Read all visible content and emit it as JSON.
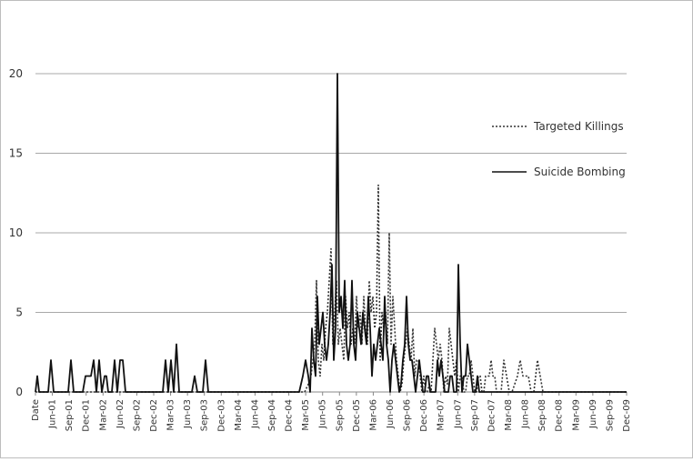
{
  "chart_data": {
    "type": "line",
    "title": "",
    "xlabel": "",
    "ylabel": "",
    "ylim": [
      0,
      20
    ],
    "yticks": [
      0,
      5,
      10,
      15,
      20
    ],
    "grid": "horizontal",
    "legend_position": "right",
    "x_ticks": [
      "Date",
      "Jun-01",
      "Sep-01",
      "Dec-01",
      "Mar-02",
      "Jun-02",
      "Sep-02",
      "Dec-02",
      "Mar-03",
      "Jun-03",
      "Sep-03",
      "Dec-03",
      "Mar-04",
      "Jun-04",
      "Sep-04",
      "Dec-04",
      "Mar-05",
      "Jun-05",
      "Sep-05",
      "Dec-05",
      "Mar-06",
      "Jun-06",
      "Sep-06",
      "Dec-06",
      "Mar-07",
      "Jun-07",
      "Sep-07",
      "Dec-07",
      "Mar-08",
      "Jun-08",
      "Sep-08",
      "Dec-08",
      "Mar-09",
      "Jun-09",
      "Sep-09",
      "Dec-09"
    ],
    "series": [
      {
        "name": "Targeted Killings",
        "style": "dotted",
        "color": "#333333",
        "points": [
          [
            0,
            0
          ],
          [
            20,
            0
          ],
          [
            40,
            0
          ],
          [
            60,
            0
          ],
          [
            80,
            0
          ],
          [
            100,
            0
          ],
          [
            120,
            0
          ],
          [
            140,
            0
          ],
          [
            160,
            0
          ],
          [
            180,
            0
          ],
          [
            200,
            0
          ],
          [
            220,
            0
          ],
          [
            240,
            0
          ],
          [
            260,
            0
          ],
          [
            280,
            0
          ],
          [
            296,
            0
          ],
          [
            300,
            0.5
          ],
          [
            303,
            1
          ],
          [
            305,
            2
          ],
          [
            307,
            3
          ],
          [
            309,
            7
          ],
          [
            311,
            2
          ],
          [
            313,
            1
          ],
          [
            315,
            3
          ],
          [
            317,
            2
          ],
          [
            319,
            4
          ],
          [
            321,
            5
          ],
          [
            323,
            7
          ],
          [
            325,
            9
          ],
          [
            327,
            3
          ],
          [
            329,
            5
          ],
          [
            331,
            7
          ],
          [
            333,
            3
          ],
          [
            335,
            4
          ],
          [
            337,
            3
          ],
          [
            339,
            2
          ],
          [
            341,
            6
          ],
          [
            343,
            4
          ],
          [
            345,
            5
          ],
          [
            347,
            3
          ],
          [
            349,
            4
          ],
          [
            351,
            3
          ],
          [
            353,
            6
          ],
          [
            355,
            4
          ],
          [
            357,
            5
          ],
          [
            359,
            3
          ],
          [
            361,
            6
          ],
          [
            363,
            4
          ],
          [
            365,
            3
          ],
          [
            367,
            7
          ],
          [
            369,
            5
          ],
          [
            371,
            6
          ],
          [
            373,
            4
          ],
          [
            375,
            5
          ],
          [
            377,
            13
          ],
          [
            379,
            2
          ],
          [
            381,
            5
          ],
          [
            383,
            4
          ],
          [
            385,
            5
          ],
          [
            387,
            3
          ],
          [
            389,
            10
          ],
          [
            391,
            3
          ],
          [
            393,
            6
          ],
          [
            395,
            4
          ],
          [
            397,
            2
          ],
          [
            399,
            1
          ],
          [
            401,
            0
          ],
          [
            403,
            0.5
          ],
          [
            405,
            2
          ],
          [
            407,
            3
          ],
          [
            409,
            4
          ],
          [
            411,
            3
          ],
          [
            413,
            2
          ],
          [
            415,
            4
          ],
          [
            417,
            1
          ],
          [
            419,
            2
          ],
          [
            421,
            2
          ],
          [
            423,
            1
          ],
          [
            425,
            0
          ],
          [
            427,
            1
          ],
          [
            429,
            0
          ],
          [
            431,
            0
          ],
          [
            433,
            0.5
          ],
          [
            435,
            0
          ],
          [
            437,
            2
          ],
          [
            439,
            4
          ],
          [
            441,
            3
          ],
          [
            443,
            2
          ],
          [
            445,
            3
          ],
          [
            447,
            2
          ],
          [
            449,
            0
          ],
          [
            451,
            1
          ],
          [
            453,
            0.5
          ],
          [
            455,
            4
          ],
          [
            457,
            3
          ],
          [
            459,
            2
          ],
          [
            461,
            1
          ],
          [
            463,
            2
          ],
          [
            465,
            0
          ],
          [
            467,
            1
          ],
          [
            469,
            1
          ],
          [
            471,
            0
          ],
          [
            473,
            0
          ],
          [
            475,
            1
          ],
          [
            477,
            1
          ],
          [
            479,
            2
          ],
          [
            481,
            1
          ],
          [
            483,
            0
          ],
          [
            485,
            0
          ],
          [
            487,
            1
          ],
          [
            489,
            1
          ],
          [
            491,
            0
          ],
          [
            493,
            0
          ],
          [
            495,
            1
          ],
          [
            497,
            1
          ],
          [
            499,
            1
          ],
          [
            501,
            2
          ],
          [
            503,
            1
          ],
          [
            505,
            1
          ],
          [
            507,
            0
          ],
          [
            509,
            0
          ],
          [
            512,
            0
          ],
          [
            515,
            2
          ],
          [
            518,
            1
          ],
          [
            521,
            0
          ],
          [
            524,
            0
          ],
          [
            527,
            0.5
          ],
          [
            530,
            1
          ],
          [
            533,
            2
          ],
          [
            536,
            1
          ],
          [
            539,
            1
          ],
          [
            542,
            1
          ],
          [
            545,
            0
          ],
          [
            548,
            0
          ],
          [
            552,
            2
          ],
          [
            555,
            1
          ],
          [
            558,
            0
          ],
          [
            562,
            0
          ],
          [
            580,
            0
          ],
          [
            600,
            0
          ],
          [
            620,
            0
          ],
          [
            640,
            0
          ],
          [
            650,
            0
          ]
        ]
      },
      {
        "name": "Suicide Bombing",
        "style": "solid",
        "color": "#111111",
        "points": [
          [
            0,
            0
          ],
          [
            2,
            1
          ],
          [
            4,
            0
          ],
          [
            14,
            0
          ],
          [
            17,
            2
          ],
          [
            20,
            0
          ],
          [
            36,
            0
          ],
          [
            39,
            2
          ],
          [
            42,
            0
          ],
          [
            52,
            0
          ],
          [
            55,
            1
          ],
          [
            58,
            1
          ],
          [
            61,
            1
          ],
          [
            64,
            2
          ],
          [
            67,
            0
          ],
          [
            70,
            2
          ],
          [
            73,
            0
          ],
          [
            76,
            1
          ],
          [
            78,
            1
          ],
          [
            80,
            0
          ],
          [
            84,
            0
          ],
          [
            87,
            2
          ],
          [
            90,
            0
          ],
          [
            93,
            2
          ],
          [
            96,
            2
          ],
          [
            99,
            0
          ],
          [
            140,
            0
          ],
          [
            143,
            2
          ],
          [
            146,
            0
          ],
          [
            149,
            2
          ],
          [
            152,
            0
          ],
          [
            155,
            3
          ],
          [
            158,
            0
          ],
          [
            172,
            0
          ],
          [
            175,
            1
          ],
          [
            178,
            0
          ],
          [
            184,
            0
          ],
          [
            187,
            2
          ],
          [
            190,
            0
          ],
          [
            290,
            0
          ],
          [
            294,
            1
          ],
          [
            297,
            2
          ],
          [
            300,
            1
          ],
          [
            302,
            0
          ],
          [
            304,
            4
          ],
          [
            306,
            2
          ],
          [
            308,
            1
          ],
          [
            310,
            6
          ],
          [
            312,
            3
          ],
          [
            314,
            4
          ],
          [
            316,
            5
          ],
          [
            318,
            3
          ],
          [
            320,
            2
          ],
          [
            322,
            3
          ],
          [
            324,
            5
          ],
          [
            326,
            8
          ],
          [
            328,
            2
          ],
          [
            330,
            4
          ],
          [
            332,
            20
          ],
          [
            334,
            5
          ],
          [
            336,
            6
          ],
          [
            338,
            4
          ],
          [
            340,
            7
          ],
          [
            342,
            3
          ],
          [
            344,
            2
          ],
          [
            346,
            3
          ],
          [
            348,
            7
          ],
          [
            350,
            3
          ],
          [
            352,
            2
          ],
          [
            354,
            5
          ],
          [
            356,
            4
          ],
          [
            358,
            3
          ],
          [
            360,
            5
          ],
          [
            362,
            4
          ],
          [
            364,
            3
          ],
          [
            366,
            6
          ],
          [
            368,
            4
          ],
          [
            370,
            1
          ],
          [
            372,
            3
          ],
          [
            374,
            2
          ],
          [
            376,
            3
          ],
          [
            378,
            4
          ],
          [
            380,
            3
          ],
          [
            382,
            2
          ],
          [
            384,
            6
          ],
          [
            386,
            3
          ],
          [
            388,
            2
          ],
          [
            390,
            0
          ],
          [
            392,
            2
          ],
          [
            394,
            3
          ],
          [
            396,
            2
          ],
          [
            398,
            1
          ],
          [
            400,
            0
          ],
          [
            402,
            0.5
          ],
          [
            404,
            2
          ],
          [
            406,
            3
          ],
          [
            408,
            6
          ],
          [
            410,
            3
          ],
          [
            412,
            2
          ],
          [
            414,
            2
          ],
          [
            416,
            1
          ],
          [
            418,
            0
          ],
          [
            420,
            1
          ],
          [
            422,
            2
          ],
          [
            424,
            1
          ],
          [
            426,
            0
          ],
          [
            428,
            0
          ],
          [
            430,
            1
          ],
          [
            432,
            1
          ],
          [
            434,
            0
          ],
          [
            440,
            0
          ],
          [
            442,
            2
          ],
          [
            444,
            1
          ],
          [
            446,
            2
          ],
          [
            448,
            1
          ],
          [
            450,
            0
          ],
          [
            454,
            0
          ],
          [
            456,
            1
          ],
          [
            458,
            1
          ],
          [
            460,
            0
          ],
          [
            463,
            0
          ],
          [
            465,
            8
          ],
          [
            467,
            3
          ],
          [
            469,
            0
          ],
          [
            471,
            1
          ],
          [
            473,
            1
          ],
          [
            475,
            3
          ],
          [
            477,
            2
          ],
          [
            479,
            1
          ],
          [
            481,
            0
          ],
          [
            484,
            0
          ],
          [
            486,
            1
          ],
          [
            488,
            0
          ],
          [
            500,
            0
          ],
          [
            520,
            0
          ],
          [
            540,
            0
          ],
          [
            560,
            0
          ],
          [
            580,
            0
          ],
          [
            600,
            0
          ],
          [
            620,
            0
          ],
          [
            640,
            0
          ],
          [
            650,
            0
          ]
        ]
      }
    ]
  }
}
